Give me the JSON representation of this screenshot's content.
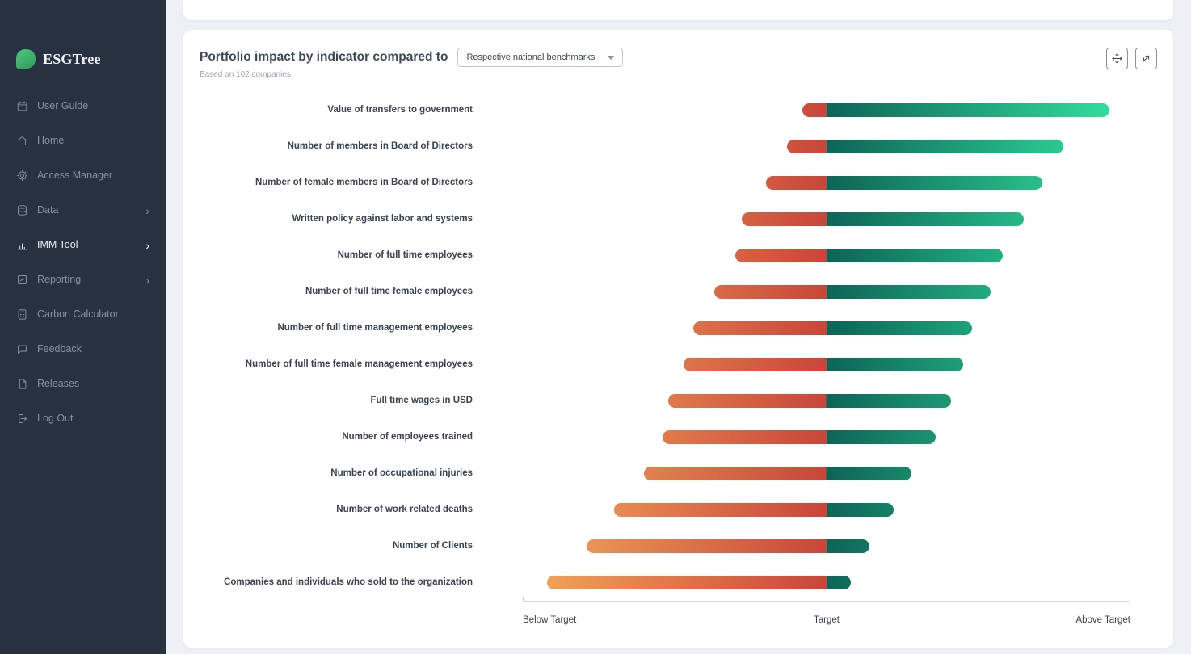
{
  "sidebar": {
    "logo_text": "ESGTree",
    "items": [
      {
        "label": "User Guide",
        "icon": "calendar-icon",
        "has_chevron": false,
        "active": false
      },
      {
        "label": "Home",
        "icon": "home-icon",
        "has_chevron": false,
        "active": false
      },
      {
        "label": "Access Manager",
        "icon": "gear-icon",
        "has_chevron": false,
        "active": false
      },
      {
        "label": "Data",
        "icon": "database-icon",
        "has_chevron": true,
        "active": false
      },
      {
        "label": "IMM Tool",
        "icon": "bar-chart-icon",
        "has_chevron": true,
        "active": true
      },
      {
        "label": "Reporting",
        "icon": "report-icon",
        "has_chevron": true,
        "active": false
      },
      {
        "label": "Carbon Calculator",
        "icon": "calculator-icon",
        "has_chevron": false,
        "active": false
      },
      {
        "label": "Feedback",
        "icon": "feedback-icon",
        "has_chevron": false,
        "active": false
      },
      {
        "label": "Releases",
        "icon": "releases-icon",
        "has_chevron": false,
        "active": false
      },
      {
        "label": "Log Out",
        "icon": "logout-icon",
        "has_chevron": false,
        "active": false
      }
    ]
  },
  "header": {
    "title": "Portfolio impact by indicator compared to",
    "subtitle": "Based on 102 companies",
    "benchmark_dropdown": {
      "selected": "Respective national benchmarks"
    },
    "actions": [
      {
        "icon": "move-icon"
      },
      {
        "icon": "expand-icon"
      }
    ]
  },
  "chart_data": {
    "type": "bar",
    "orientation": "horizontal",
    "diverging": true,
    "title": "Portfolio impact by indicator compared to Respective national benchmarks",
    "subtitle": "Based on 102 companies",
    "categories": [
      "Value of transfers to government",
      "Number of members in Board of Directors",
      "Number of female members in Board of Directors",
      "Written policy against labor and systems",
      "Number of full time employees",
      "Number of full time female employees",
      "Number of full time management employees",
      "Number of full time female management employees",
      "Full time wages in USD",
      "Number of employees trained",
      "Number of occupational injuries",
      "Number of work related deaths",
      "Number of Clients",
      "Companies and individuals who sold to the organization"
    ],
    "series": [
      {
        "name": "Below Target extent",
        "values": [
          -0.08,
          -0.13,
          -0.2,
          -0.28,
          -0.3,
          -0.37,
          -0.44,
          -0.47,
          -0.52,
          -0.54,
          -0.6,
          -0.7,
          -0.79,
          -0.92
        ]
      },
      {
        "name": "Above Target extent",
        "values": [
          0.93,
          0.78,
          0.71,
          0.65,
          0.58,
          0.54,
          0.48,
          0.45,
          0.41,
          0.36,
          0.28,
          0.22,
          0.14,
          0.08
        ]
      }
    ],
    "x_axis": {
      "tick_labels": [
        "Below Target",
        "Target",
        "Above Target"
      ],
      "range": [
        -1,
        1
      ],
      "target": 0
    },
    "grid": false,
    "legend": false,
    "colors": {
      "left_end": "#F4A95C",
      "left_target": "#C8463A",
      "right_target": "#0D6456",
      "right_end": "#33E6A1"
    }
  }
}
